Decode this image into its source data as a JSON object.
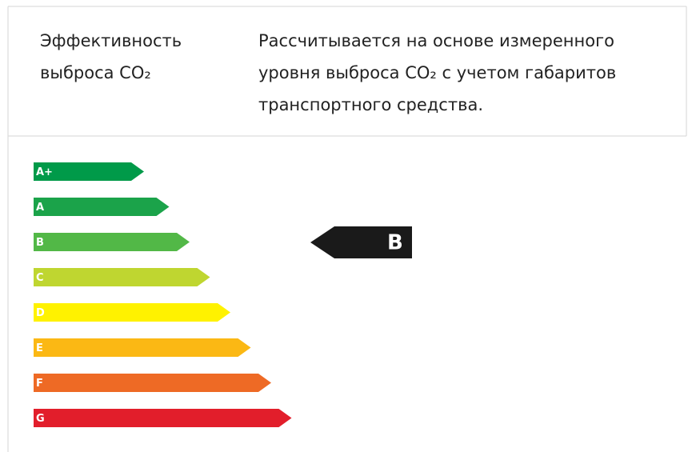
{
  "header": {
    "label_lines": [
      "Эффективность",
      "выброса CO₂"
    ],
    "description_lines": [
      "Рассчитывается на основе измеренного",
      "уровня выброса CO₂ с учетом габаритов",
      "транспортного средства."
    ]
  },
  "classes": [
    {
      "label": "A+",
      "color": "#009a49"
    },
    {
      "label": "A",
      "color": "#1ba34a"
    },
    {
      "label": "B",
      "color": "#52b847"
    },
    {
      "label": "C",
      "color": "#bfd630"
    },
    {
      "label": "D",
      "color": "#fff200"
    },
    {
      "label": "E",
      "color": "#fbb814"
    },
    {
      "label": "F",
      "color": "#ee6a25"
    },
    {
      "label": "G",
      "color": "#e21e2b"
    }
  ],
  "indicator": {
    "label": "B",
    "color": "#1a1a1a"
  }
}
